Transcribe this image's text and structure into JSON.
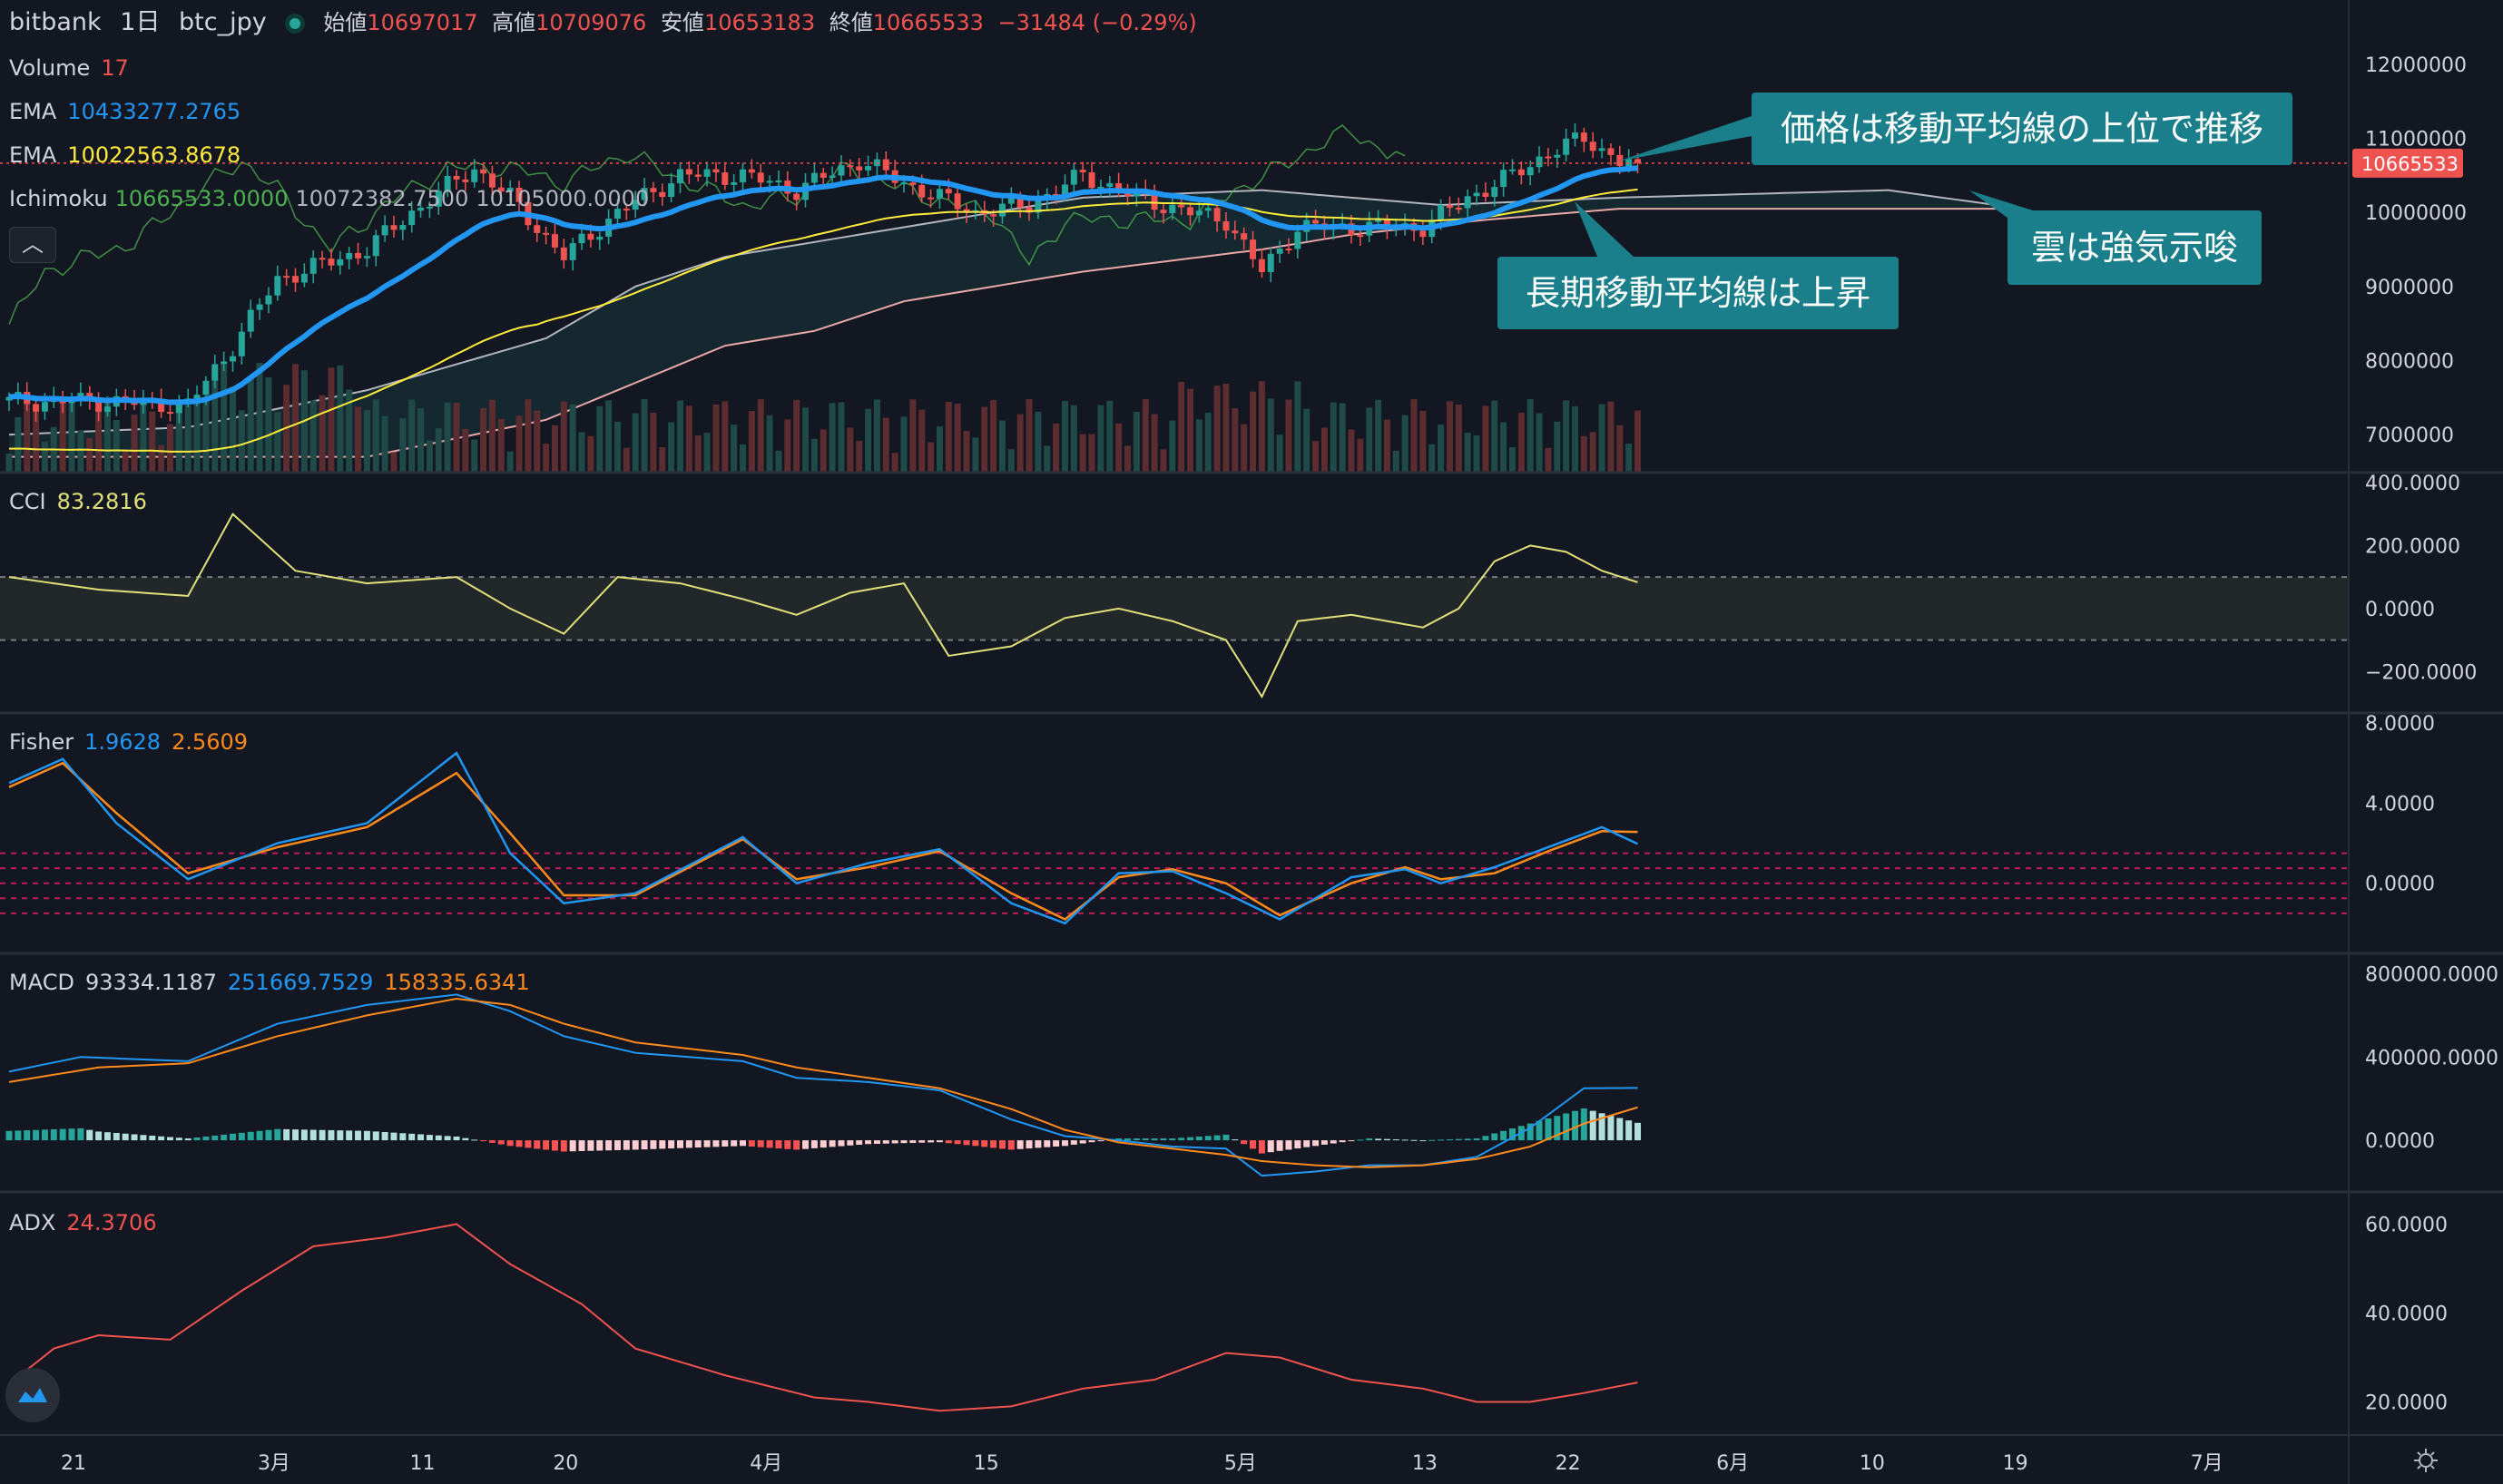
{
  "header": {
    "exchange": "bitbank",
    "interval": "1日",
    "symbol": "btc_jpy",
    "open_label": "始値",
    "open": "10697017",
    "high_label": "高値",
    "high": "10709076",
    "low_label": "安値",
    "low": "10653183",
    "close_label": "終値",
    "close": "10665533",
    "change": "−31484 (−0.29%)"
  },
  "legends": {
    "volume": {
      "label": "Volume",
      "value": "17"
    },
    "ema1": {
      "label": "EMA",
      "value": "10433277.2765"
    },
    "ema2": {
      "label": "EMA",
      "value": "10022563.8678"
    },
    "ichimoku": {
      "label": "Ichimoku",
      "v1": "10665533.0000",
      "v2": "10072382.7500",
      "v3": "10105000.0000"
    },
    "cci": {
      "label": "CCI",
      "value": "83.2816"
    },
    "fisher": {
      "label": "Fisher",
      "v1": "1.9628",
      "v2": "2.5609"
    },
    "macd": {
      "label": "MACD",
      "v1": "93334.1187",
      "v2": "251669.7529",
      "v3": "158335.6341"
    },
    "adx": {
      "label": "ADX",
      "value": "24.3706"
    }
  },
  "price_axis": [
    "12000000",
    "11000000",
    "10000000",
    "9000000",
    "8000000",
    "7000000"
  ],
  "price_tag": "10665533",
  "cci_axis": [
    "400.0000",
    "200.0000",
    "0.0000",
    "−200.0000"
  ],
  "fisher_axis": [
    "8.0000",
    "4.0000",
    "0.0000"
  ],
  "macd_axis": [
    "800000.0000",
    "400000.0000",
    "0.0000"
  ],
  "adx_axis": [
    "60.0000",
    "40.0000",
    "20.0000"
  ],
  "time_axis": [
    "21",
    "3月",
    "11",
    "20",
    "4月",
    "15",
    "5月",
    "13",
    "22",
    "6月",
    "10",
    "19",
    "7月"
  ],
  "annotations": {
    "a1": "価格は移動平均線の上位で推移",
    "a2": "雲は強気示唆",
    "a3": "長期移動平均線は上昇"
  },
  "colors": {
    "up": "#26a69a",
    "down": "#ef5350",
    "ema_fast": "#2196f3",
    "ema_slow": "#ffeb3b",
    "bg": "#131722",
    "callout": "#1a7f8a"
  },
  "chart_data": [
    {
      "type": "candlestick",
      "title": "bitbank 1日 btc_jpy",
      "ylim": [
        6500000,
        12500000
      ],
      "close_anchors": [
        [
          0,
          7450000
        ],
        [
          10,
          7450000
        ],
        [
          20,
          7400000
        ],
        [
          25,
          8200000
        ],
        [
          30,
          9100000
        ],
        [
          40,
          9500000
        ],
        [
          45,
          10000000
        ],
        [
          52,
          10600000
        ],
        [
          56,
          10200000
        ],
        [
          62,
          9400000
        ],
        [
          68,
          10000000
        ],
        [
          75,
          10500000
        ],
        [
          82,
          10500000
        ],
        [
          88,
          10300000
        ],
        [
          95,
          10700000
        ],
        [
          100,
          10400000
        ],
        [
          108,
          10000000
        ],
        [
          114,
          10100000
        ],
        [
          120,
          10500000
        ],
        [
          126,
          10200000
        ],
        [
          132,
          10000000
        ],
        [
          136,
          9900000
        ],
        [
          140,
          9200000
        ],
        [
          144,
          9800000
        ],
        [
          150,
          9800000
        ],
        [
          158,
          9800000
        ],
        [
          163,
          10200000
        ],
        [
          168,
          10500000
        ],
        [
          172,
          10800000
        ],
        [
          176,
          11000000
        ],
        [
          180,
          10700000
        ],
        [
          182,
          10665533
        ]
      ],
      "overlays": [
        "EMA fast",
        "EMA slow",
        "Ichimoku cloud"
      ]
    },
    {
      "type": "line",
      "title": "CCI",
      "ylim": [
        -300,
        400
      ],
      "values": [
        [
          0,
          100
        ],
        [
          10,
          60
        ],
        [
          20,
          40
        ],
        [
          25,
          300
        ],
        [
          32,
          120
        ],
        [
          40,
          80
        ],
        [
          50,
          100
        ],
        [
          56,
          0
        ],
        [
          62,
          -80
        ],
        [
          68,
          100
        ],
        [
          75,
          80
        ],
        [
          82,
          30
        ],
        [
          88,
          -20
        ],
        [
          94,
          50
        ],
        [
          100,
          80
        ],
        [
          105,
          -150
        ],
        [
          112,
          -120
        ],
        [
          118,
          -30
        ],
        [
          124,
          0
        ],
        [
          130,
          -40
        ],
        [
          136,
          -100
        ],
        [
          140,
          -280
        ],
        [
          144,
          -40
        ],
        [
          150,
          -20
        ],
        [
          158,
          -60
        ],
        [
          162,
          0
        ],
        [
          166,
          150
        ],
        [
          170,
          200
        ],
        [
          174,
          180
        ],
        [
          178,
          120
        ],
        [
          182,
          83.28
        ]
      ]
    },
    {
      "type": "line",
      "title": "Fisher",
      "ylim": [
        -3,
        8
      ],
      "series": [
        {
          "name": "Fisher",
          "values": [
            [
              0,
              5
            ],
            [
              6,
              6.2
            ],
            [
              12,
              3
            ],
            [
              20,
              0.2
            ],
            [
              30,
              2
            ],
            [
              40,
              3
            ],
            [
              50,
              6.5
            ],
            [
              56,
              1.5
            ],
            [
              62,
              -1
            ],
            [
              70,
              -0.5
            ],
            [
              82,
              2.3
            ],
            [
              88,
              0
            ],
            [
              96,
              1
            ],
            [
              104,
              1.7
            ],
            [
              112,
              -1
            ],
            [
              118,
              -2
            ],
            [
              124,
              0.5
            ],
            [
              130,
              0.6
            ],
            [
              136,
              -0.5
            ],
            [
              142,
              -1.8
            ],
            [
              150,
              0.3
            ],
            [
              156,
              0.7
            ],
            [
              160,
              0
            ],
            [
              166,
              0.8
            ],
            [
              172,
              1.8
            ],
            [
              178,
              2.8
            ],
            [
              182,
              1.96
            ]
          ]
        },
        {
          "name": "Trigger",
          "values": [
            [
              0,
              4.8
            ],
            [
              6,
              6
            ],
            [
              12,
              3.5
            ],
            [
              20,
              0.5
            ],
            [
              30,
              1.8
            ],
            [
              40,
              2.8
            ],
            [
              50,
              5.5
            ],
            [
              56,
              2.5
            ],
            [
              62,
              -0.6
            ],
            [
              70,
              -0.6
            ],
            [
              82,
              2.2
            ],
            [
              88,
              0.2
            ],
            [
              96,
              0.8
            ],
            [
              104,
              1.6
            ],
            [
              112,
              -0.5
            ],
            [
              118,
              -1.8
            ],
            [
              124,
              0.3
            ],
            [
              130,
              0.7
            ],
            [
              136,
              0
            ],
            [
              142,
              -1.6
            ],
            [
              150,
              0
            ],
            [
              156,
              0.8
            ],
            [
              160,
              0.2
            ],
            [
              166,
              0.5
            ],
            [
              172,
              1.6
            ],
            [
              178,
              2.6
            ],
            [
              182,
              2.56
            ]
          ]
        }
      ]
    },
    {
      "type": "line",
      "title": "MACD",
      "ylim": [
        -200000,
        850000
      ],
      "series": [
        {
          "name": "MACD",
          "values": [
            [
              0,
              330000
            ],
            [
              8,
              400000
            ],
            [
              20,
              380000
            ],
            [
              30,
              560000
            ],
            [
              40,
              650000
            ],
            [
              50,
              700000
            ],
            [
              56,
              620000
            ],
            [
              62,
              500000
            ],
            [
              70,
              420000
            ],
            [
              82,
              380000
            ],
            [
              88,
              300000
            ],
            [
              96,
              280000
            ],
            [
              104,
              240000
            ],
            [
              112,
              100000
            ],
            [
              118,
              20000
            ],
            [
              124,
              0
            ],
            [
              130,
              -30000
            ],
            [
              136,
              -40000
            ],
            [
              140,
              -170000
            ],
            [
              146,
              -150000
            ],
            [
              152,
              -120000
            ],
            [
              158,
              -120000
            ],
            [
              164,
              -80000
            ],
            [
              170,
              60000
            ],
            [
              176,
              250000
            ],
            [
              182,
              251670
            ]
          ]
        },
        {
          "name": "Signal",
          "values": [
            [
              0,
              280000
            ],
            [
              10,
              350000
            ],
            [
              20,
              370000
            ],
            [
              30,
              500000
            ],
            [
              40,
              600000
            ],
            [
              50,
              680000
            ],
            [
              56,
              650000
            ],
            [
              62,
              560000
            ],
            [
              70,
              470000
            ],
            [
              82,
              410000
            ],
            [
              88,
              350000
            ],
            [
              96,
              300000
            ],
            [
              104,
              250000
            ],
            [
              112,
              150000
            ],
            [
              118,
              50000
            ],
            [
              124,
              -10000
            ],
            [
              130,
              -40000
            ],
            [
              136,
              -70000
            ],
            [
              140,
              -100000
            ],
            [
              146,
              -120000
            ],
            [
              152,
              -130000
            ],
            [
              158,
              -120000
            ],
            [
              164,
              -90000
            ],
            [
              170,
              -30000
            ],
            [
              176,
              80000
            ],
            [
              182,
              158336
            ]
          ]
        }
      ]
    },
    {
      "type": "line",
      "title": "ADX",
      "ylim": [
        15,
        65
      ],
      "values": [
        [
          0,
          24
        ],
        [
          5,
          32
        ],
        [
          10,
          35
        ],
        [
          18,
          34
        ],
        [
          26,
          45
        ],
        [
          34,
          55
        ],
        [
          42,
          57
        ],
        [
          50,
          60
        ],
        [
          56,
          51
        ],
        [
          64,
          42
        ],
        [
          70,
          32
        ],
        [
          80,
          26
        ],
        [
          90,
          21
        ],
        [
          96,
          20
        ],
        [
          104,
          18
        ],
        [
          112,
          19
        ],
        [
          120,
          23
        ],
        [
          128,
          25
        ],
        [
          136,
          31
        ],
        [
          142,
          30
        ],
        [
          150,
          25
        ],
        [
          158,
          23
        ],
        [
          164,
          20
        ],
        [
          170,
          20
        ],
        [
          176,
          22
        ],
        [
          182,
          24.37
        ]
      ]
    }
  ]
}
